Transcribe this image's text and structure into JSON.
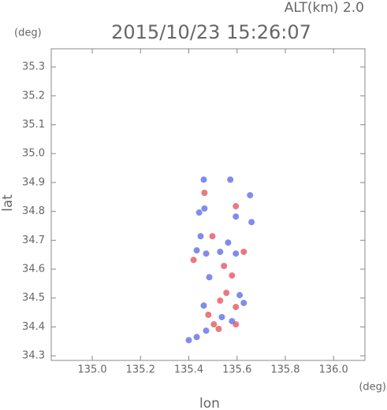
{
  "chart_data": {
    "type": "scatter",
    "title": "2015/10/23 15:26:07",
    "subtitle": "ALT(km) 2.0",
    "y_unit": "(deg)",
    "x_unit": "(deg)",
    "xlabel": "lon",
    "ylabel": "lat",
    "xlim": [
      134.83,
      136.13
    ],
    "ylim": [
      34.284,
      35.363
    ],
    "xticks": [
      {
        "value": 135,
        "label": "135.0"
      },
      135.2,
      135.4,
      135.6,
      135.8,
      {
        "value": 136,
        "label": "136.0"
      }
    ],
    "yticks": [
      34.3,
      34.4,
      34.5,
      34.6,
      34.7,
      34.8,
      34.9,
      {
        "value": 35,
        "label": "35.0"
      },
      35.1,
      35.2,
      35.3
    ],
    "series": [
      {
        "color": "#e8606a",
        "x": [
          135.524,
          135.504,
          135.595,
          135.42,
          135.498,
          135.579,
          135.546,
          135.53,
          135.595,
          135.481,
          135.556,
          135.628,
          135.465,
          135.595
        ],
        "values": [
          34.393,
          34.409,
          34.469,
          34.632,
          34.714,
          34.578,
          34.611,
          34.491,
          34.409,
          34.442,
          34.518,
          34.66,
          34.864,
          34.818
        ]
      },
      {
        "color": "#6a78e8",
        "x": [
          135.472,
          135.433,
          135.563,
          135.595,
          135.462,
          135.537,
          135.579,
          135.628,
          135.611,
          135.472,
          135.433,
          135.4,
          135.449,
          135.53,
          135.465,
          135.654,
          135.572,
          135.462,
          135.595,
          135.485,
          135.443,
          135.66
        ],
        "values": [
          34.654,
          34.665,
          34.692,
          34.654,
          34.474,
          34.434,
          34.42,
          34.483,
          34.51,
          34.387,
          34.365,
          34.354,
          34.714,
          34.66,
          34.81,
          34.856,
          34.91,
          34.91,
          34.782,
          34.572,
          34.796,
          34.763
        ]
      }
    ]
  }
}
